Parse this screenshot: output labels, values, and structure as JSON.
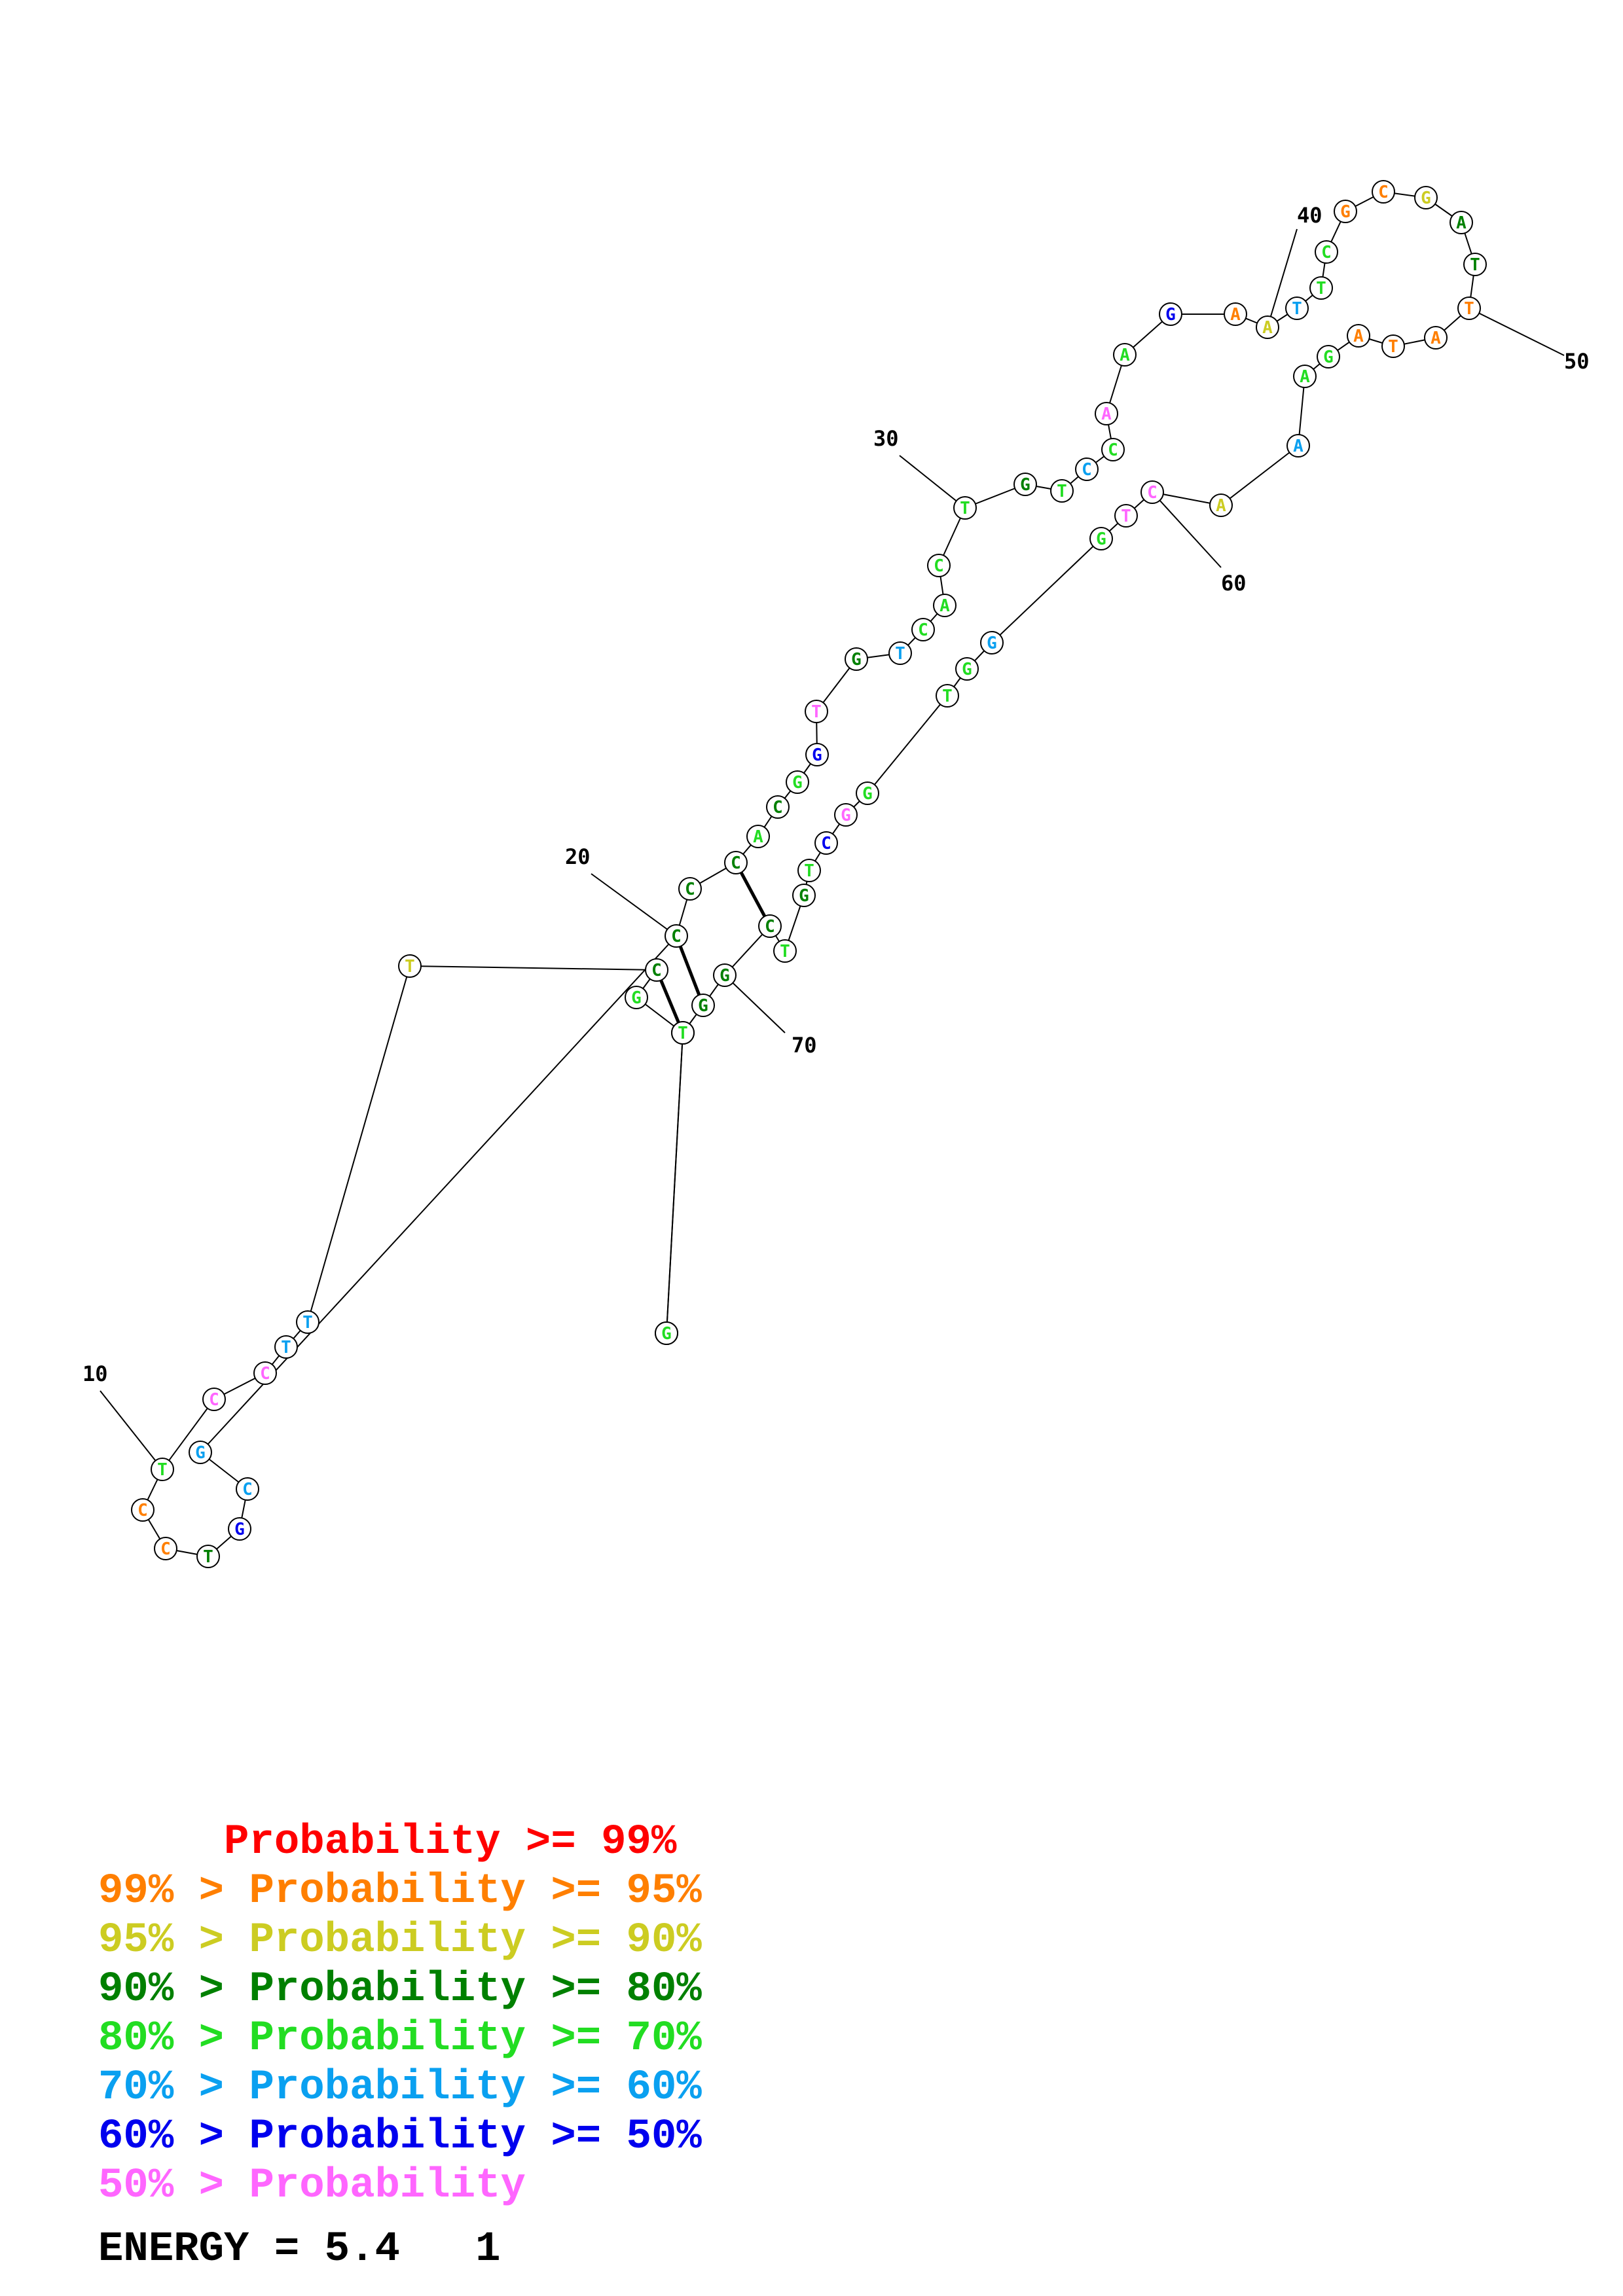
{
  "nucleotides": [
    {
      "n": 1,
      "b": "G",
      "c": "yellow"
    },
    {
      "n": 2,
      "b": "T",
      "c": "green"
    },
    {
      "n": 3,
      "b": "G",
      "c": "green"
    },
    {
      "n": 4,
      "b": "C",
      "c": "dkgreen"
    },
    {
      "n": 5,
      "b": "T",
      "c": "yellow"
    },
    {
      "n": 6,
      "b": "T",
      "c": "blue"
    },
    {
      "n": 7,
      "b": "T",
      "c": "blue"
    },
    {
      "n": 8,
      "b": "C",
      "c": "pink"
    },
    {
      "n": 9,
      "b": "C",
      "c": "pink"
    },
    {
      "n": 10,
      "b": "T",
      "c": "green"
    },
    {
      "n": 11,
      "b": "C",
      "c": "orange"
    },
    {
      "n": 12,
      "b": "C",
      "c": "orange"
    },
    {
      "n": 13,
      "b": "T",
      "c": "dkgreen"
    },
    {
      "n": 14,
      "b": "G",
      "c": "navy"
    },
    {
      "n": 15,
      "b": "C",
      "c": "blue"
    },
    {
      "n": 16,
      "b": "G",
      "c": "blue"
    },
    {
      "n": 17,
      "b": "C",
      "c": "dkgreen"
    },
    {
      "n": 18,
      "b": "C",
      "c": "dkgreen"
    },
    {
      "n": 19,
      "b": "C",
      "c": "dkgreen"
    },
    {
      "n": 20,
      "b": "A",
      "c": "green"
    },
    {
      "n": 21,
      "b": "C",
      "c": "dkgreen"
    },
    {
      "n": 22,
      "b": "G",
      "c": "green"
    },
    {
      "n": 23,
      "b": "G",
      "c": "navy"
    },
    {
      "n": 24,
      "b": "T",
      "c": "pink"
    },
    {
      "n": 25,
      "b": "G",
      "c": "dkgreen"
    },
    {
      "n": 26,
      "b": "T",
      "c": "blue"
    },
    {
      "n": 27,
      "b": "C",
      "c": "green"
    },
    {
      "n": 28,
      "b": "A",
      "c": "green"
    },
    {
      "n": 29,
      "b": "C",
      "c": "green"
    },
    {
      "n": 30,
      "b": "T",
      "c": "green"
    },
    {
      "n": 31,
      "b": "G",
      "c": "dkgreen"
    },
    {
      "n": 32,
      "b": "T",
      "c": "green"
    },
    {
      "n": 33,
      "b": "C",
      "c": "blue"
    },
    {
      "n": 34,
      "b": "C",
      "c": "green"
    },
    {
      "n": 35,
      "b": "A",
      "c": "pink"
    },
    {
      "n": 36,
      "b": "A",
      "c": "green"
    },
    {
      "n": 37,
      "b": "G",
      "c": "navy"
    },
    {
      "n": 38,
      "b": "A",
      "c": "orange"
    },
    {
      "n": 39,
      "b": "A",
      "c": "yellow"
    },
    {
      "n": 40,
      "b": "T",
      "c": "blue"
    },
    {
      "n": 41,
      "b": "T",
      "c": "green"
    },
    {
      "n": 42,
      "b": "C",
      "c": "green"
    },
    {
      "n": 43,
      "b": "G",
      "c": "orange"
    },
    {
      "n": 44,
      "b": "C",
      "c": "orange"
    },
    {
      "n": 45,
      "b": "G",
      "c": "yellow"
    },
    {
      "n": 46,
      "b": "A",
      "c": "dkgreen"
    },
    {
      "n": 47,
      "b": "T",
      "c": "dkgreen"
    },
    {
      "n": 48,
      "b": "T",
      "c": "orange"
    },
    {
      "n": 49,
      "b": "A",
      "c": "orange"
    },
    {
      "n": 50,
      "b": "T",
      "c": "orange"
    },
    {
      "n": 51,
      "b": "A",
      "c": "orange"
    },
    {
      "n": 52,
      "b": "G",
      "c": "green"
    },
    {
      "n": 53,
      "b": "A",
      "c": "green"
    },
    {
      "n": 54,
      "b": "A",
      "c": "blue"
    },
    {
      "n": 55,
      "b": "A",
      "c": "yellow"
    },
    {
      "n": 56,
      "b": "C",
      "c": "pink"
    },
    {
      "n": 57,
      "b": "T",
      "c": "pink"
    },
    {
      "n": 58,
      "b": "G",
      "c": "green"
    },
    {
      "n": 59,
      "b": "G",
      "c": "blue"
    },
    {
      "n": 60,
      "b": "G",
      "c": "green"
    },
    {
      "n": 61,
      "b": "T",
      "c": "green"
    },
    {
      "n": 62,
      "b": "G",
      "c": "green"
    },
    {
      "n": 63,
      "b": "G",
      "c": "pink"
    },
    {
      "n": 64,
      "b": "C",
      "c": "navy"
    },
    {
      "n": 65,
      "b": "T",
      "c": "green"
    },
    {
      "n": 66,
      "b": "G",
      "c": "dkgreen"
    },
    {
      "n": 67,
      "b": "T",
      "c": "green"
    },
    {
      "n": 68,
      "b": "C",
      "c": "dkgreen"
    },
    {
      "n": 69,
      "b": "G",
      "c": "dkgreen"
    },
    {
      "n": 70,
      "b": "G",
      "c": "dkgreen"
    },
    {
      "n": 71,
      "b": "T",
      "c": "green"
    },
    {
      "n": 72,
      "b": "G",
      "c": "green"
    },
    {
      "n": 73,
      "b": "C",
      "c": "dkgreen"
    },
    {
      "n": 74,
      "b": "T",
      "c": "yellow"
    },
    {
      "n": 75,
      "b": "T",
      "c": "blue"
    },
    {
      "n": 76,
      "b": "T",
      "c": "blue"
    },
    {
      "n": 77,
      "b": "C",
      "c": "pink"
    },
    {
      "n": 78,
      "b": "G",
      "c": "pink"
    },
    {
      "n": 79,
      "b": "C",
      "c": "blue"
    },
    {
      "n": 80,
      "b": "G",
      "c": "navy"
    },
    {
      "n": 81,
      "b": "T",
      "c": "dkgreen"
    },
    {
      "n": 82,
      "b": "C",
      "c": "orange"
    },
    {
      "n": 83,
      "b": "C",
      "c": "orange"
    },
    {
      "n": 84,
      "b": "T",
      "c": "green"
    },
    {
      "n": 85,
      "b": "G",
      "c": "blue"
    },
    {
      "n": 86,
      "b": "C",
      "c": "pink"
    },
    {
      "n": 87,
      "b": "C",
      "c": "pink"
    },
    {
      "n": 88,
      "b": "T",
      "c": "blue"
    },
    {
      "n": 89,
      "b": "T",
      "c": "blue"
    },
    {
      "n": 90,
      "b": "G",
      "c": "blue"
    },
    {
      "n": 91,
      "b": "C",
      "c": "yellow"
    },
    {
      "n": 92,
      "b": "A",
      "c": "blue"
    }
  ],
  "pairs": [
    [
      3,
      73
    ],
    [
      4,
      72
    ],
    [
      6,
      69
    ],
    [
      7,
      68
    ],
    [
      8,
      67
    ],
    [
      9,
      66
    ],
    [
      14,
      82
    ],
    [
      15,
      80
    ],
    [
      16,
      79
    ],
    [
      17,
      78
    ],
    [
      18,
      77
    ],
    [
      19,
      76
    ],
    [
      20,
      75
    ],
    [
      21,
      74
    ],
    [
      25,
      66
    ],
    [
      26,
      65
    ],
    [
      27,
      64
    ],
    [
      28,
      63
    ],
    [
      29,
      62
    ],
    [
      33,
      59
    ],
    [
      34,
      58
    ],
    [
      40,
      54
    ],
    [
      41,
      53
    ],
    [
      42,
      52
    ]
  ],
  "position_labels": [
    {
      "text": "10",
      "at": 10
    },
    {
      "text": "20",
      "at": 20
    },
    {
      "text": "30",
      "at": 30
    },
    {
      "text": "40",
      "at": 40
    },
    {
      "text": "50",
      "at": 50
    },
    {
      "text": "60",
      "at": 60
    },
    {
      "text": "70",
      "at": 70
    }
  ],
  "colors": {
    "red": "#ff0000",
    "orange": "#ff7f00",
    "yellow": "#cccc22",
    "dkgreen": "#008000",
    "green": "#22dd22",
    "blue": "#0aa0f0",
    "navy": "#0000ee",
    "pink": "#ff66ff"
  },
  "legend": [
    {
      "text": "     Probability >= 99%",
      "color": "red"
    },
    {
      "text": "99% > Probability >= 95%",
      "color": "orange"
    },
    {
      "text": "95% > Probability >= 90%",
      "color": "yellow"
    },
    {
      "text": "90% > Probability >= 80%",
      "color": "dkgreen"
    },
    {
      "text": "80% > Probability >= 70%",
      "color": "green"
    },
    {
      "text": "70% > Probability >= 60%",
      "color": "blue"
    },
    {
      "text": "60% > Probability >= 50%",
      "color": "navy"
    },
    {
      "text": "50% > Probability",
      "color": "pink"
    }
  ],
  "energy": "ENERGY = 5.4   1"
}
